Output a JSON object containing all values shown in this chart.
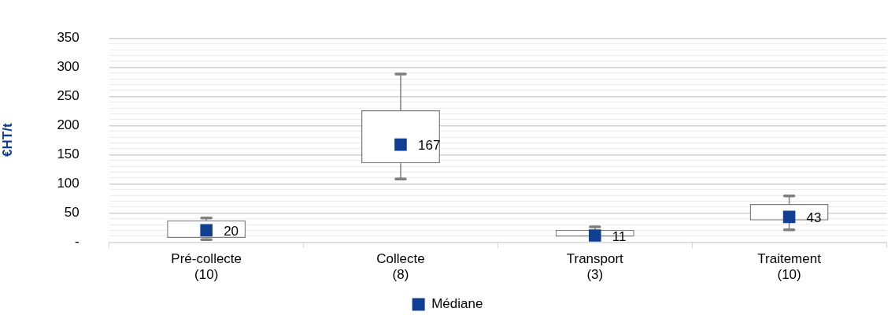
{
  "chart_data": {
    "type": "box",
    "ylabel": "€HT/t",
    "categories": [
      "Pré-collecte\n(10)",
      "Collecte\n(8)",
      "Transport\n(3)",
      "Traitement\n(10)"
    ],
    "series": [
      {
        "type": "scatter",
        "name": "Médiane",
        "color": "#0f3e93",
        "values": [
          20,
          167,
          11,
          43
        ]
      },
      {
        "color": "#7f7f7f",
        "boxes": [
          {
            "low": 4,
            "q1": 7,
            "q3": 37,
            "high": 41
          },
          {
            "low": 108,
            "q1": 135,
            "q3": 226,
            "high": 288
          },
          {
            "low": 7,
            "q1": 9,
            "q3": 21,
            "high": 26
          },
          {
            "low": 21,
            "q1": 37,
            "q3": 65,
            "high": 79
          }
        ]
      }
    ],
    "ylim": [
      0,
      350
    ],
    "yticks": [
      {
        "value": 0,
        "label": "-"
      },
      {
        "value": 10,
        "label": null
      },
      {
        "value": 20,
        "label": null
      },
      {
        "value": 30,
        "label": null
      },
      {
        "value": 40,
        "label": null
      },
      50,
      {
        "value": 60,
        "label": null
      },
      {
        "value": 70,
        "label": null
      },
      {
        "value": 80,
        "label": null
      },
      {
        "value": 90,
        "label": null
      },
      100,
      {
        "value": 110,
        "label": null
      },
      {
        "value": 120,
        "label": null
      },
      {
        "value": 130,
        "label": null
      },
      {
        "value": 140,
        "label": null
      },
      150,
      {
        "value": 160,
        "label": null
      },
      {
        "value": 170,
        "label": null
      },
      {
        "value": 180,
        "label": null
      },
      {
        "value": 190,
        "label": null
      },
      200,
      {
        "value": 210,
        "label": null
      },
      {
        "value": 220,
        "label": null
      },
      {
        "value": 230,
        "label": null
      },
      {
        "value": 240,
        "label": null
      },
      250,
      {
        "value": 260,
        "label": null
      },
      {
        "value": 270,
        "label": null
      },
      {
        "value": 280,
        "label": null
      },
      {
        "value": 290,
        "label": null
      },
      300,
      {
        "value": 310,
        "label": null
      },
      {
        "value": 320,
        "label": null
      },
      {
        "value": 330,
        "label": null
      },
      {
        "value": 340,
        "label": null
      },
      350
    ],
    "grid": "y",
    "legend": "bottom",
    "marker": "square",
    "data_labels": true
  }
}
